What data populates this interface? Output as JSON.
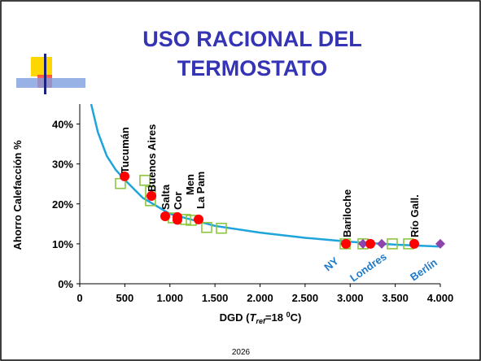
{
  "chart_data": {
    "type": "scatter",
    "title_lines": [
      "USO RACIONAL DEL",
      "TERMOSTATO"
    ],
    "x_label_parts": [
      "DGD (",
      "T",
      "ref",
      "=18 ",
      "0",
      "C)"
    ],
    "y_label": "Ahorro Calefacción  %",
    "footer": "2026",
    "xlim": [
      0,
      4000
    ],
    "ylim": [
      0,
      45
    ],
    "xticks": [
      0,
      500,
      {
        "value": 1000,
        "label": "1.000"
      },
      {
        "value": 1500,
        "label": "1.500"
      },
      {
        "value": 2000,
        "label": "2.000"
      },
      {
        "value": 2500,
        "label": "2.500"
      },
      {
        "value": 3000,
        "label": "3.000"
      },
      {
        "value": 3500,
        "label": "3.500"
      },
      {
        "value": 4000,
        "label": "4.000"
      }
    ],
    "yticks": [
      {
        "value": 0,
        "label": "0%"
      },
      {
        "value": 10,
        "label": "10%"
      },
      {
        "value": 20,
        "label": "20%"
      },
      {
        "value": 30,
        "label": "30%"
      },
      {
        "value": 40,
        "label": "40%"
      }
    ],
    "curve": {
      "color": "#1ea4dc",
      "x": [
        126,
        200,
        300,
        400,
        500,
        700,
        1000,
        1500,
        2000,
        2500,
        3000,
        3500,
        4000
      ],
      "y": [
        45,
        38,
        32,
        28.5,
        26,
        21.5,
        17.5,
        14.5,
        12.8,
        11.5,
        10.5,
        9.8,
        9.3
      ]
    },
    "series": [
      {
        "marker": "square",
        "color": "#8cc63f",
        "x": [
          451,
          722,
          785,
          785,
          1038,
          1174,
          1237,
          1408,
          1571,
          2944,
          3142,
          3467,
          3648
        ],
        "values": [
          25.1,
          25.9,
          23.1,
          20.8,
          16.5,
          16.1,
          15.9,
          14.1,
          13.9,
          10,
          10,
          10,
          10
        ]
      },
      {
        "marker": "diamond",
        "color": "#8e44ad",
        "x": [
          2944,
          3142,
          3350,
          4000
        ],
        "values": [
          10,
          10,
          10,
          10
        ]
      },
      {
        "marker": "circle",
        "color": "#ff0000",
        "x": [
          497,
          795,
          948,
          1083,
          1083,
          1318,
          2953,
          3224,
          3711
        ],
        "values": [
          26.9,
          22,
          16.9,
          16.7,
          16,
          16.1,
          10,
          10,
          10
        ]
      }
    ],
    "annotations": [
      "Tucumán",
      "Buenos Aires",
      "Salta",
      "Cor",
      "Men",
      "La Pam",
      "Bariloche",
      "Río Gall.",
      "NY",
      "Londres",
      "Berlín"
    ]
  }
}
